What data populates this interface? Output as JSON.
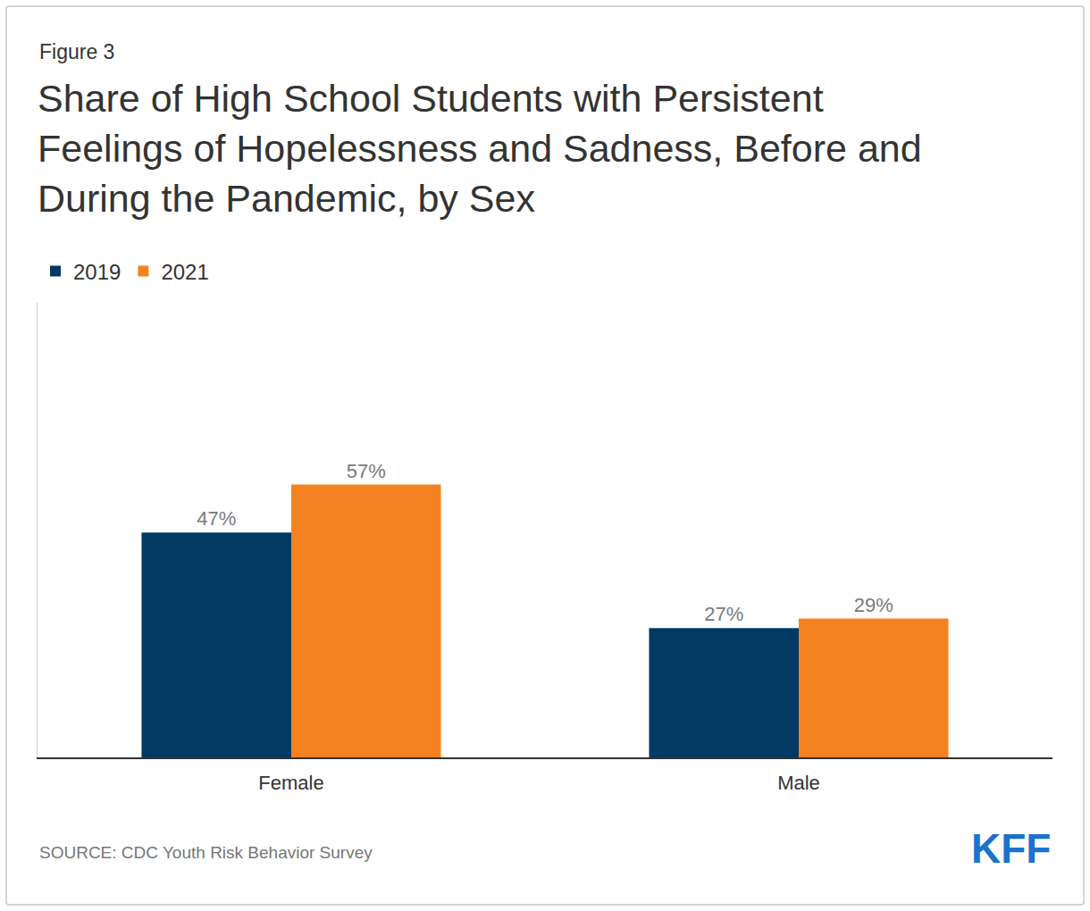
{
  "chart_data": {
    "type": "bar",
    "label": "Figure 3",
    "title": "Share of High School Students with Persistent Feelings of Hopelessness and Sadness, Before and During the Pandemic, by Sex",
    "categories": [
      "Female",
      "Male"
    ],
    "series": [
      {
        "name": "2019",
        "color": "#003A63",
        "values": [
          47,
          27
        ],
        "value_labels": [
          "47%",
          "27%"
        ]
      },
      {
        "name": "2021",
        "color": "#F58220",
        "values": [
          57,
          29
        ],
        "value_labels": [
          "57%",
          "29%"
        ]
      }
    ],
    "ylim": [
      0,
      95
    ],
    "grid": false,
    "data_labels": true,
    "tick_labels": "x",
    "legend": "top left",
    "source": "SOURCE: CDC Youth Risk Behavior Survey",
    "logo": "KFF"
  }
}
